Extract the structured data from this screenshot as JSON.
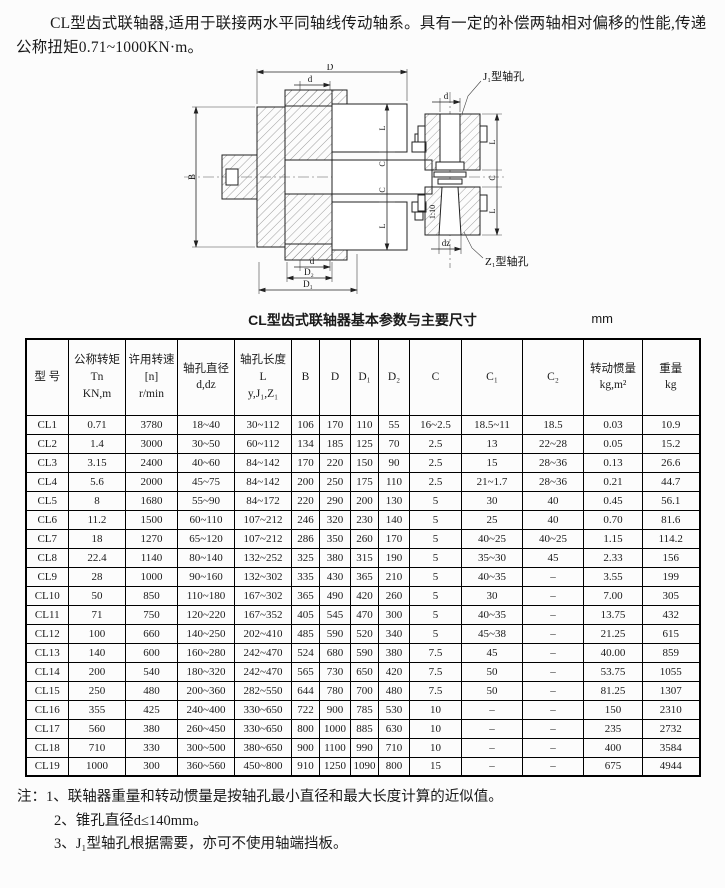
{
  "page": {
    "intro": "CL型齿式联轴器,适用于联接两水平同轴线传动轴系。具有一定的补偿两轴相对偏移的性能,传递公称扭矩0.71~1000KN·m。"
  },
  "diagram": {
    "labels": {
      "D": "D",
      "d_top": "d",
      "B": "B",
      "L_upper": "L",
      "C_upper": "C",
      "C_lower": "C",
      "L_lower": "L",
      "d_bottom": "d",
      "D2": "D₂",
      "D1": "D₁",
      "j1": "J₁型轴孔",
      "z1": "Z₁型轴孔",
      "d_right": "d",
      "L_right_upper": "L",
      "C_right": "C",
      "L_right_lower": "L",
      "taper": "1:10",
      "dz": "dz"
    }
  },
  "table": {
    "title": "CL型齿式联轴器基本参数与主要尺寸",
    "unit": "mm",
    "headers": [
      {
        "lines": [
          "型 号"
        ]
      },
      {
        "lines": [
          "公称转矩",
          "Tn",
          "KN,m"
        ]
      },
      {
        "lines": [
          "许用转速",
          "[n]",
          "r/min"
        ]
      },
      {
        "lines": [
          "轴孔直径",
          "d,dz"
        ]
      },
      {
        "lines": [
          "轴孔长度",
          "L",
          "y,J₁,Z₁"
        ]
      },
      {
        "lines": [
          "B"
        ]
      },
      {
        "lines": [
          "D"
        ]
      },
      {
        "lines": [
          "D₁"
        ]
      },
      {
        "lines": [
          "D₂"
        ]
      },
      {
        "lines": [
          "C"
        ]
      },
      {
        "lines": [
          "C₁"
        ]
      },
      {
        "lines": [
          "C₂"
        ]
      },
      {
        "lines": [
          "转动惯量",
          "kg,m²"
        ]
      },
      {
        "lines": [
          "重量",
          "kg"
        ]
      }
    ],
    "rows": [
      [
        "CL1",
        "0.71",
        "3780",
        "18~40",
        "30~112",
        "106",
        "170",
        "110",
        "55",
        "16~2.5",
        "18.5~11",
        "18.5",
        "0.03",
        "10.9"
      ],
      [
        "CL2",
        "1.4",
        "3000",
        "30~50",
        "60~112",
        "134",
        "185",
        "125",
        "70",
        "2.5",
        "13",
        "22~28",
        "0.05",
        "15.2"
      ],
      [
        "CL3",
        "3.15",
        "2400",
        "40~60",
        "84~142",
        "170",
        "220",
        "150",
        "90",
        "2.5",
        "15",
        "28~36",
        "0.13",
        "26.6"
      ],
      [
        "CL4",
        "5.6",
        "2000",
        "45~75",
        "84~142",
        "200",
        "250",
        "175",
        "110",
        "2.5",
        "21~1.7",
        "28~36",
        "0.21",
        "44.7"
      ],
      [
        "CL5",
        "8",
        "1680",
        "55~90",
        "84~172",
        "220",
        "290",
        "200",
        "130",
        "5",
        "30",
        "40",
        "0.45",
        "56.1"
      ],
      [
        "CL6",
        "11.2",
        "1500",
        "60~110",
        "107~212",
        "246",
        "320",
        "230",
        "140",
        "5",
        "25",
        "40",
        "0.70",
        "81.6"
      ],
      [
        "CL7",
        "18",
        "1270",
        "65~120",
        "107~212",
        "286",
        "350",
        "260",
        "170",
        "5",
        "40~25",
        "40~25",
        "1.15",
        "114.2"
      ],
      [
        "CL8",
        "22.4",
        "1140",
        "80~140",
        "132~252",
        "325",
        "380",
        "315",
        "190",
        "5",
        "35~30",
        "45",
        "2.33",
        "156"
      ],
      [
        "CL9",
        "28",
        "1000",
        "90~160",
        "132~302",
        "335",
        "430",
        "365",
        "210",
        "5",
        "40~35",
        "–",
        "3.55",
        "199"
      ],
      [
        "CL10",
        "50",
        "850",
        "110~180",
        "167~302",
        "365",
        "490",
        "420",
        "260",
        "5",
        "30",
        "–",
        "7.00",
        "305"
      ],
      [
        "CL11",
        "71",
        "750",
        "120~220",
        "167~352",
        "405",
        "545",
        "470",
        "300",
        "5",
        "40~35",
        "–",
        "13.75",
        "432"
      ],
      [
        "CL12",
        "100",
        "660",
        "140~250",
        "202~410",
        "485",
        "590",
        "520",
        "340",
        "5",
        "45~38",
        "–",
        "21.25",
        "615"
      ],
      [
        "CL13",
        "140",
        "600",
        "160~280",
        "242~470",
        "524",
        "680",
        "590",
        "380",
        "7.5",
        "45",
        "–",
        "40.00",
        "859"
      ],
      [
        "CL14",
        "200",
        "540",
        "180~320",
        "242~470",
        "565",
        "730",
        "650",
        "420",
        "7.5",
        "50",
        "–",
        "53.75",
        "1055"
      ],
      [
        "CL15",
        "250",
        "480",
        "200~360",
        "282~550",
        "644",
        "780",
        "700",
        "480",
        "7.5",
        "50",
        "–",
        "81.25",
        "1307"
      ],
      [
        "CL16",
        "355",
        "425",
        "240~400",
        "330~650",
        "722",
        "900",
        "785",
        "530",
        "10",
        "–",
        "–",
        "150",
        "2310"
      ],
      [
        "CL17",
        "560",
        "380",
        "260~450",
        "330~650",
        "800",
        "1000",
        "885",
        "630",
        "10",
        "–",
        "–",
        "235",
        "2732"
      ],
      [
        "CL18",
        "710",
        "330",
        "300~500",
        "380~650",
        "900",
        "1100",
        "990",
        "710",
        "10",
        "–",
        "–",
        "400",
        "3584"
      ],
      [
        "CL19",
        "1000",
        "300",
        "360~560",
        "450~800",
        "910",
        "1250",
        "1090",
        "800",
        "15",
        "–",
        "–",
        "675",
        "4944"
      ]
    ]
  },
  "notes": {
    "items": [
      "注：1、联轴器重量和转动惯量是按轴孔最小直径和最大长度计算的近似值。",
      "2、锥孔直径d≤140mm。",
      "3、J₁型轴孔根据需要，亦可不使用轴端挡板。"
    ]
  }
}
